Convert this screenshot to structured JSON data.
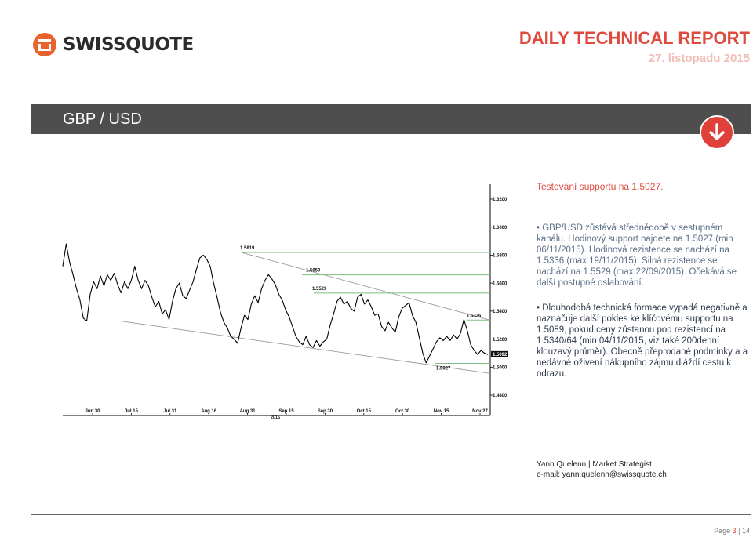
{
  "brand": {
    "name": "SWISSQUOTE"
  },
  "header": {
    "title": "DAILY TECHNICAL REPORT",
    "date": "27. listopadu 2015"
  },
  "pair": {
    "label": "GBP / USD",
    "trend_icon": "arrow-down-icon",
    "color": "#e0403a"
  },
  "section_title": "Testování supportu na 1.5027.",
  "bullets": [
    "• GBP/USD zůstává střednědobě v sestupném kanálu. Hodinový support najdete na 1.5027 (min 06/11/2015). Hodinová rezistence se nachází na 1.5336 (max 19/11/2015). Silná rezistence se nachází na  1.5529 (max 22/09/2015). Očekává se další postupné oslabování.",
    "• Dlouhodobá technická formace vypadá negativně a naznačuje další pokles ke klíčovému supportu na 1.5089, pokud ceny zůstanou pod rezistencí na 1.5340/64 (min 04/11/2015, viz také 200denní klouzavý průměr). Obecně přeprodané podmínky a a nedávné oživení nákupního zájmu dláždí cestu k odrazu."
  ],
  "author": {
    "line1": "Yann Quelenn | Market Strategist",
    "line2": "e-mail: yann.quelenn@swissquote.ch"
  },
  "footer": {
    "page_label": "Page",
    "page_current": "3",
    "page_total": "| 14"
  },
  "chart_data": {
    "type": "line",
    "x_ticks": [
      "Jun 30",
      "Jul 15",
      "Jul 31",
      "Aug 16",
      "Aug 31",
      "Sep 15",
      "Sep 30",
      "Oct 15",
      "Oct 30",
      "Nov 15",
      "Nov 27"
    ],
    "year_label": "2015",
    "y_ticks": [
      "1.6200",
      "1.6000",
      "1.5800",
      "1.5600",
      "1.5400",
      "1.5200",
      "1.5000",
      "1.4800"
    ],
    "ylim": [
      1.48,
      1.62
    ],
    "annotations": [
      "1.5819",
      "1.5659",
      "1.5529",
      "1.5336",
      "1.5027"
    ],
    "last_price": "1.5092",
    "levels": [
      1.5819,
      1.5659,
      1.5529,
      1.5336,
      1.5027
    ],
    "series": [
      {
        "values": [
          1.572,
          1.588,
          1.575,
          1.566,
          1.556,
          1.548,
          1.535,
          1.533,
          1.552,
          1.561,
          1.556,
          1.565,
          1.558,
          1.566,
          1.562,
          1.567,
          1.559,
          1.553,
          1.561,
          1.556,
          1.562,
          1.572,
          1.562,
          1.556,
          1.562,
          1.558,
          1.55,
          1.543,
          1.547,
          1.538,
          1.541,
          1.534,
          1.547,
          1.556,
          1.56,
          1.551,
          1.549,
          1.555,
          1.561,
          1.57,
          1.578,
          1.58,
          1.577,
          1.572,
          1.56,
          1.55,
          1.539,
          1.532,
          1.528,
          1.522,
          1.52,
          1.517,
          1.528,
          1.537,
          1.534,
          1.545,
          1.551,
          1.546,
          1.556,
          1.562,
          1.566,
          1.563,
          1.559,
          1.552,
          1.548,
          1.541,
          1.536,
          1.529,
          1.522,
          1.518,
          1.516,
          1.522,
          1.516,
          1.514,
          1.519,
          1.515,
          1.518,
          1.52,
          1.53,
          1.538,
          1.547,
          1.55,
          1.545,
          1.547,
          1.542,
          1.54,
          1.55,
          1.552,
          1.545,
          1.548,
          1.543,
          1.537,
          1.538,
          1.529,
          1.526,
          1.532,
          1.528,
          1.525,
          1.536,
          1.542,
          1.544,
          1.546,
          1.537,
          1.532,
          1.521,
          1.51,
          1.503,
          1.508,
          1.513,
          1.518,
          1.521,
          1.519,
          1.522,
          1.519,
          1.523,
          1.52,
          1.524,
          1.534,
          1.526,
          1.516,
          1.512,
          1.509,
          1.512,
          1.51,
          1.509
        ]
      }
    ]
  }
}
